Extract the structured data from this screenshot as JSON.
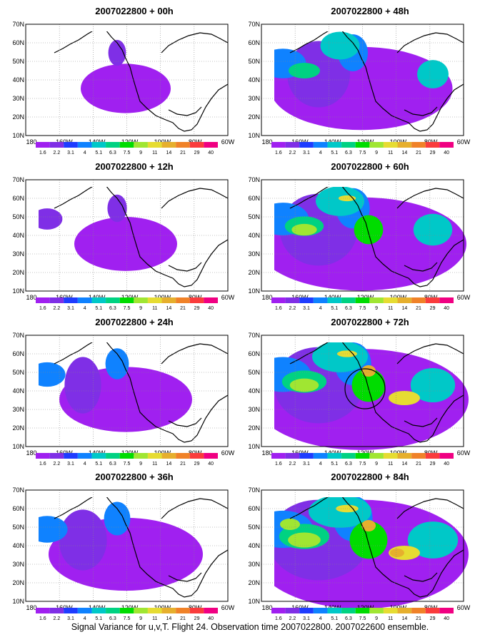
{
  "panels": [
    {
      "title": "2007022800 + 00h",
      "lead": "00h",
      "intensity": 0.12
    },
    {
      "title": "2007022800 + 48h",
      "lead": "48h",
      "intensity": 0.55
    },
    {
      "title": "2007022800 + 12h",
      "lead": "12h",
      "intensity": 0.18
    },
    {
      "title": "2007022800 + 60h",
      "lead": "60h",
      "intensity": 0.68
    },
    {
      "title": "2007022800 + 24h",
      "lead": "24h",
      "intensity": 0.32
    },
    {
      "title": "2007022800 + 72h",
      "lead": "72h",
      "intensity": 0.78,
      "has_circle": true
    },
    {
      "title": "2007022800 + 36h",
      "lead": "36h",
      "intensity": 0.42
    },
    {
      "title": "2007022800 + 84h",
      "lead": "84h",
      "intensity": 0.88
    }
  ],
  "axes": {
    "lat_labels": [
      "70N",
      "60N",
      "50N",
      "40N",
      "30N",
      "20N",
      "10N"
    ],
    "lon_labels": [
      "180",
      "160W",
      "140W",
      "120W",
      "100W",
      "80W",
      "60W"
    ]
  },
  "colorbar": {
    "levels": [
      "1.6",
      "2.2",
      "3.1",
      "4",
      "5.1",
      "6.3",
      "7.5",
      "9",
      "11",
      "14",
      "21",
      "29",
      "40"
    ],
    "colors": [
      "#a020f0",
      "#7f2fe6",
      "#1e3cff",
      "#0f82ff",
      "#00c8c8",
      "#00d282",
      "#00dc00",
      "#a0e632",
      "#e6dc32",
      "#e6af2d",
      "#f08228",
      "#fa3c3c",
      "#f00082"
    ]
  },
  "caption": "Signal Variance for u,v,T. Flight 24. Observation time 2007022800. 2007022600 ensemble."
}
